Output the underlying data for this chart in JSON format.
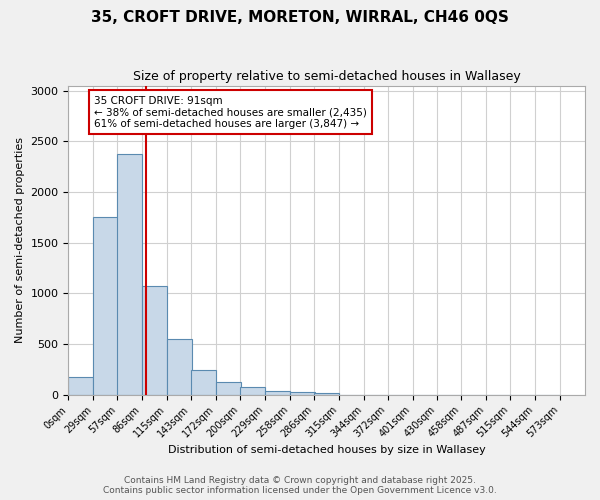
{
  "title": "35, CROFT DRIVE, MORETON, WIRRAL, CH46 0QS",
  "subtitle": "Size of property relative to semi-detached houses in Wallasey",
  "xlabel": "Distribution of semi-detached houses by size in Wallasey",
  "ylabel": "Number of semi-detached properties",
  "bin_labels": [
    "0sqm",
    "29sqm",
    "57sqm",
    "86sqm",
    "115sqm",
    "143sqm",
    "172sqm",
    "200sqm",
    "229sqm",
    "258sqm",
    "286sqm",
    "315sqm",
    "344sqm",
    "372sqm",
    "401sqm",
    "430sqm",
    "458sqm",
    "487sqm",
    "515sqm",
    "544sqm",
    "573sqm"
  ],
  "bin_edges": [
    0,
    29,
    57,
    86,
    115,
    143,
    172,
    200,
    229,
    258,
    286,
    315,
    344,
    372,
    401,
    430,
    458,
    487,
    515,
    544,
    573
  ],
  "bar_heights": [
    175,
    1750,
    2375,
    1075,
    550,
    240,
    130,
    75,
    40,
    25,
    15,
    0,
    0,
    0,
    0,
    0,
    0,
    0,
    0,
    0
  ],
  "bar_color": "#c8d8e8",
  "bar_edge_color": "#5a8ab0",
  "property_size": 91,
  "red_line_color": "#cc0000",
  "annotation_text": "35 CROFT DRIVE: 91sqm\n← 38% of semi-detached houses are smaller (2,435)\n61% of semi-detached houses are larger (3,847) →",
  "annotation_box_color": "#cc0000",
  "ylim": [
    0,
    3050
  ],
  "yticks": [
    0,
    500,
    1000,
    1500,
    2000,
    2500,
    3000
  ],
  "footer_text": "Contains HM Land Registry data © Crown copyright and database right 2025.\nContains public sector information licensed under the Open Government Licence v3.0.",
  "background_color": "#f0f0f0",
  "plot_background_color": "#ffffff",
  "grid_color": "#d0d0d0"
}
